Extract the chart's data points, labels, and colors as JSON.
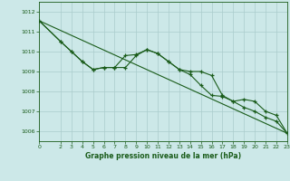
{
  "title": "",
  "xlabel": "Graphe pression niveau de la mer (hPa)",
  "background_color": "#cce8e8",
  "grid_color": "#aacccc",
  "line_color": "#1a5c1a",
  "xlim": [
    0,
    23
  ],
  "ylim": [
    1005.5,
    1012.5
  ],
  "yticks": [
    1006,
    1007,
    1008,
    1009,
    1010,
    1011,
    1012
  ],
  "xticks": [
    0,
    2,
    3,
    4,
    5,
    6,
    7,
    8,
    9,
    10,
    11,
    12,
    13,
    14,
    15,
    16,
    17,
    18,
    19,
    20,
    21,
    22,
    23
  ],
  "series1_x": [
    0,
    2,
    3,
    4,
    5,
    6,
    7,
    8,
    9,
    10,
    11,
    12,
    13,
    14,
    15,
    16,
    17,
    18,
    19,
    20,
    21,
    22,
    23
  ],
  "series1_y": [
    1011.55,
    1010.5,
    1010.0,
    1009.5,
    1009.1,
    1009.2,
    1009.2,
    1009.8,
    1009.85,
    1010.1,
    1009.9,
    1009.5,
    1009.1,
    1008.85,
    1008.3,
    1007.8,
    1007.75,
    1007.5,
    1007.2,
    1007.0,
    1006.7,
    1006.5,
    1005.9
  ],
  "series2_x": [
    0,
    23
  ],
  "series2_y": [
    1011.55,
    1005.9
  ],
  "series3_x": [
    0,
    2,
    3,
    4,
    5,
    6,
    7,
    8,
    9,
    10,
    11,
    12,
    13,
    14,
    15,
    16,
    17,
    18,
    19,
    20,
    21,
    22,
    23
  ],
  "series3_y": [
    1011.55,
    1010.5,
    1010.0,
    1009.5,
    1009.1,
    1009.2,
    1009.2,
    1009.2,
    1009.8,
    1010.1,
    1009.9,
    1009.5,
    1009.1,
    1009.0,
    1009.0,
    1008.8,
    1007.8,
    1007.5,
    1007.6,
    1007.5,
    1007.0,
    1006.8,
    1005.9
  ]
}
